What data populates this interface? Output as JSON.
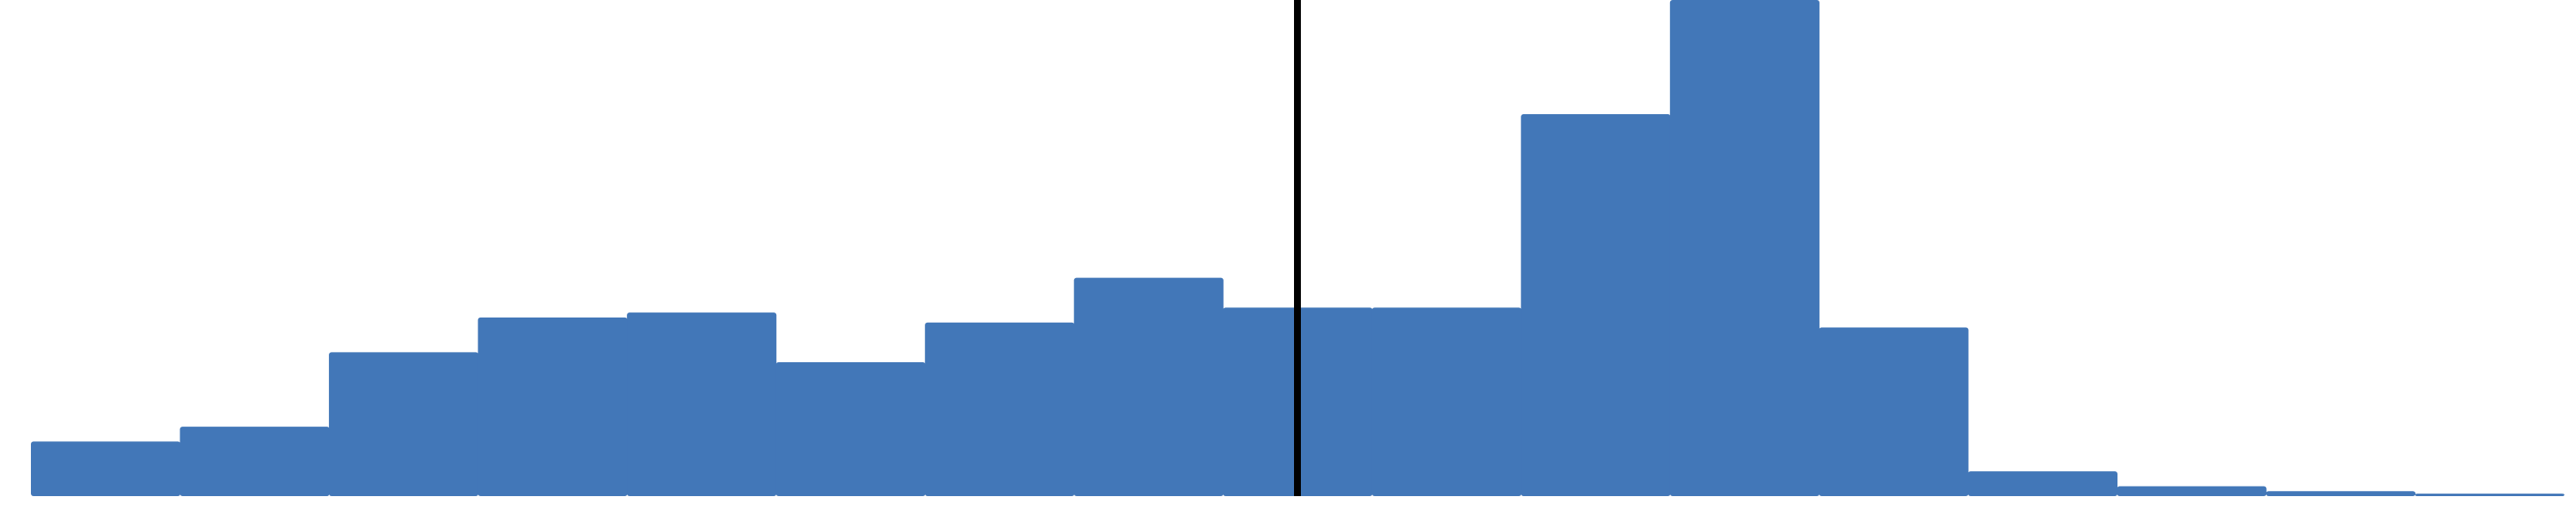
{
  "chart_data": {
    "type": "bar",
    "title": "",
    "xlabel": "",
    "ylabel": "",
    "bar_color": "#4277B8",
    "marker_color": "#000000",
    "grid": false,
    "legend": "none",
    "values": [
      0.11,
      0.14,
      0.29,
      0.36,
      0.37,
      0.27,
      0.35,
      0.44,
      0.38,
      0.38,
      0.77,
      1.0,
      0.34,
      0.05,
      0.02,
      0.01,
      0.005
    ],
    "ylim": [
      0,
      1.0
    ],
    "vertical_marker_index": 8.5
  }
}
